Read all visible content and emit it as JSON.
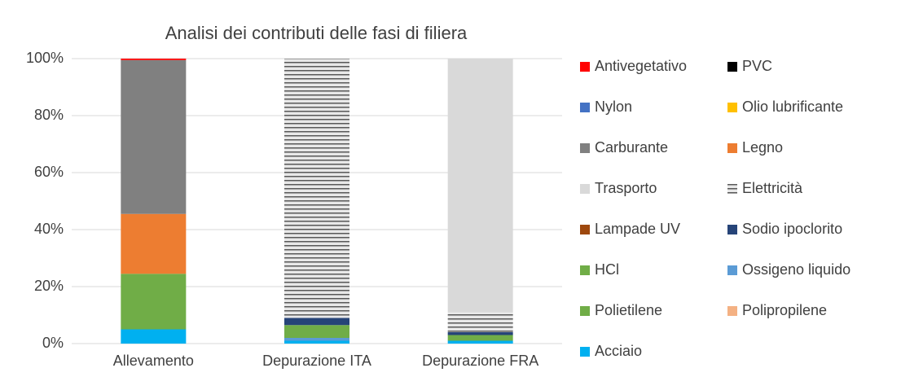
{
  "chart_data": {
    "type": "stacked-bar",
    "title": "Analisi dei contributi delle fasi di filiera",
    "categories": [
      "Allevamento",
      "Depurazione ITA",
      "Depurazione FRA"
    ],
    "series": [
      {
        "name": "Antivegetativo",
        "color": "#ff0000",
        "values": [
          0.5,
          0,
          0
        ]
      },
      {
        "name": "PVC",
        "color": "#000000",
        "values": [
          0,
          0,
          0
        ]
      },
      {
        "name": "Nylon",
        "color": "#4472c4",
        "values": [
          0,
          0,
          0
        ]
      },
      {
        "name": "Olio lubrificante",
        "color": "#ffc000",
        "values": [
          0,
          0,
          0
        ]
      },
      {
        "name": "Carburante",
        "color": "#808080",
        "values": [
          54,
          0,
          0
        ]
      },
      {
        "name": "Legno",
        "color": "#ed7d31",
        "values": [
          21,
          0,
          0
        ]
      },
      {
        "name": "Trasporto",
        "color": "#d9d9d9",
        "values": [
          0,
          0,
          89
        ]
      },
      {
        "name": "Elettricità",
        "color": "#595959",
        "pattern": "horizontal-lines",
        "values": [
          0,
          91,
          7
        ]
      },
      {
        "name": "Lampade UV",
        "color": "#9e480e",
        "values": [
          0,
          0,
          0
        ]
      },
      {
        "name": "Sodio ipoclorito",
        "color": "#264478",
        "values": [
          0,
          2.5,
          1
        ]
      },
      {
        "name": "HCl",
        "color": "#70ad47",
        "values": [
          0,
          4.5,
          2
        ]
      },
      {
        "name": "Ossigeno liquido",
        "color": "#5b9bd5",
        "values": [
          0,
          1,
          0
        ]
      },
      {
        "name": "Polietilene",
        "color": "#70ad47",
        "values": [
          19.5,
          0,
          0
        ]
      },
      {
        "name": "Polipropilene",
        "color": "#f4b183",
        "values": [
          0,
          0,
          0
        ]
      },
      {
        "name": "Acciaio",
        "color": "#00b0f0",
        "values": [
          5,
          1,
          1
        ]
      }
    ],
    "ylim": [
      0,
      100
    ],
    "yticks": [
      {
        "value": 0,
        "label": "0%"
      },
      {
        "value": 20,
        "label": "20%"
      },
      {
        "value": 40,
        "label": "40%"
      },
      {
        "value": 60,
        "label": "60%"
      },
      {
        "value": 80,
        "label": "80%"
      },
      {
        "value": 100,
        "label": "100%"
      }
    ],
    "grid": true,
    "legend": "right"
  }
}
